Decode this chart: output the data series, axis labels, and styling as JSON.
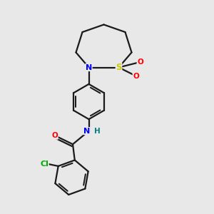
{
  "bg_color": "#e8e8e8",
  "bond_color": "#1a1a1a",
  "atom_colors": {
    "N": "#0000ff",
    "O": "#ff0000",
    "S": "#cccc00",
    "Cl": "#00aa00",
    "H": "#008080"
  },
  "font_size": 7.5,
  "line_width": 1.6
}
